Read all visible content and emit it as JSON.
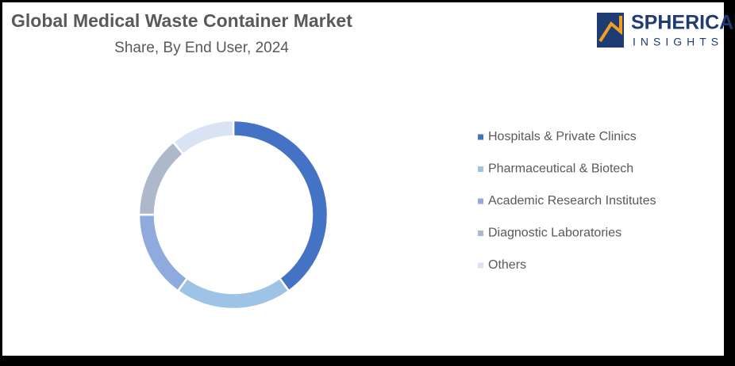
{
  "chart_data": {
    "type": "donut",
    "title": "Global Medical Waste Container Market",
    "subtitle": "Share, By End User, 2024",
    "categories": [
      "Hospitals & Private Clinics",
      "Pharmaceutical & Biotech",
      "Academic Research Institutes",
      "Diagnostic Laboratories",
      "Others"
    ],
    "values": [
      40,
      20,
      15,
      14,
      11
    ],
    "colors": [
      "#4472c4",
      "#9dc3e6",
      "#8faadc",
      "#adb9ca",
      "#dae3f3"
    ],
    "legend": "right"
  },
  "logo": {
    "line1": "SPHERICAL",
    "line2": "INSIGHTS"
  }
}
